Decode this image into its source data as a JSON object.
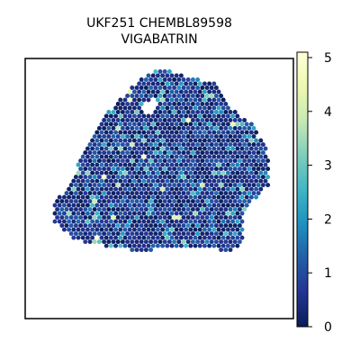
{
  "chart_data": {
    "type": "scatter",
    "title_lines": [
      "UKF251 CHEMBL89598",
      "VIGABATRIN"
    ],
    "xlabel": "",
    "ylabel": "",
    "grid": false,
    "colormap": "YlGnBu",
    "colorbar": {
      "range": [
        0,
        5.1
      ],
      "ticks": [
        0,
        1,
        2,
        3,
        4,
        5
      ],
      "tick_labels": [
        "0",
        "1",
        "2",
        "3",
        "4",
        "5"
      ],
      "placement": "right"
    },
    "spot_shape": "hexagonal grid",
    "tissue_outline_xy": [
      [
        -0.35,
        0.62
      ],
      [
        -0.1,
        0.88
      ],
      [
        0.04,
        0.98
      ],
      [
        0.1,
        1.0
      ],
      [
        0.2,
        0.96
      ],
      [
        0.36,
        0.92
      ],
      [
        0.5,
        0.88
      ],
      [
        0.58,
        0.86
      ],
      [
        0.64,
        0.74
      ],
      [
        0.68,
        0.67
      ],
      [
        0.74,
        0.61
      ],
      [
        0.8,
        0.57
      ],
      [
        0.86,
        0.53
      ],
      [
        0.9,
        0.44
      ],
      [
        0.98,
        0.32
      ],
      [
        0.99,
        0.18
      ],
      [
        1.0,
        0.05
      ],
      [
        0.92,
        -0.05
      ],
      [
        0.84,
        -0.12
      ],
      [
        0.78,
        -0.22
      ],
      [
        0.79,
        -0.36
      ],
      [
        0.76,
        -0.46
      ],
      [
        0.66,
        -0.52
      ],
      [
        0.5,
        -0.49
      ],
      [
        0.36,
        -0.47
      ],
      [
        0.22,
        -0.49
      ],
      [
        0.04,
        -0.5
      ],
      [
        -0.08,
        -0.52
      ],
      [
        -0.2,
        -0.48
      ],
      [
        -0.34,
        -0.47
      ],
      [
        -0.48,
        -0.46
      ],
      [
        -0.62,
        -0.4
      ],
      [
        -0.72,
        -0.34
      ],
      [
        -0.79,
        -0.24
      ],
      [
        -0.77,
        -0.12
      ],
      [
        -0.7,
        -0.02
      ],
      [
        -0.62,
        0.1
      ],
      [
        -0.55,
        0.3
      ],
      [
        -0.46,
        0.46
      ]
    ],
    "tissue_holes_xy": [
      [
        [
          -0.04,
          0.7
        ],
        [
          0.04,
          0.74
        ],
        [
          0.08,
          0.68
        ],
        [
          0.02,
          0.62
        ],
        [
          -0.06,
          0.64
        ]
      ]
    ],
    "value_distribution": {
      "background": 0.3,
      "typical_range": [
        0,
        1.5
      ],
      "sparse_high_spots": [
        2,
        3
      ],
      "rare_peak": 5
    }
  }
}
